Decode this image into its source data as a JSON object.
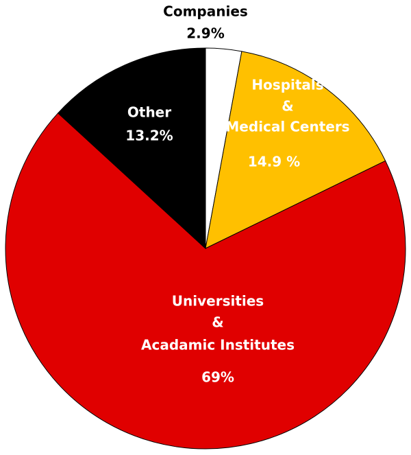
{
  "chart_data": {
    "type": "pie",
    "categories": [
      [
        "Companies"
      ],
      [
        "Hospitals",
        "&",
        "Medical Centers"
      ],
      [
        "Universities",
        "&",
        "Acadamic Institutes"
      ],
      [
        "Other"
      ]
    ],
    "values": [
      2.9,
      14.9,
      69,
      13.2
    ],
    "value_labels": [
      "2.9%",
      "14.9 %",
      "69%",
      "13.2%"
    ],
    "colors": [
      "#ffffff",
      "#ffc000",
      "#e00000",
      "#000000"
    ]
  }
}
